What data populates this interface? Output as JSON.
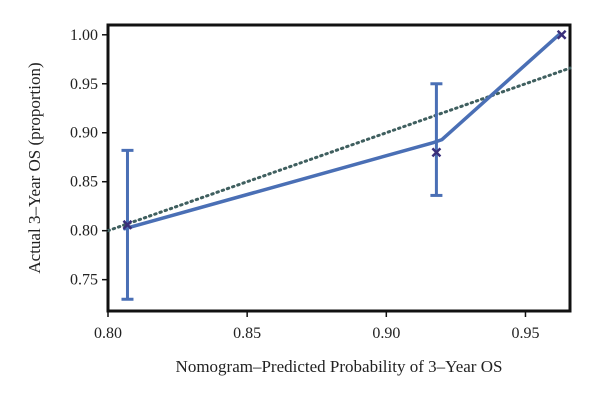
{
  "chart_data": {
    "type": "line",
    "title": "",
    "xlabel": "Nomogram–Predicted Probability of 3–Year OS",
    "ylabel": "Actual 3–Year OS (proportion)",
    "xlim": [
      0.8,
      0.966
    ],
    "ylim": [
      0.718,
      1.01
    ],
    "x_ticks": [
      {
        "value": 0.8,
        "label": "0.80"
      },
      {
        "value": 0.85,
        "label": "0.85"
      },
      {
        "value": 0.9,
        "label": "0.90"
      },
      {
        "value": 0.95,
        "label": "0.95"
      }
    ],
    "y_ticks": [
      {
        "value": 0.75,
        "label": "0.75"
      },
      {
        "value": 0.8,
        "label": "0.80"
      },
      {
        "value": 0.85,
        "label": "0.85"
      },
      {
        "value": 0.9,
        "label": "0.90"
      },
      {
        "value": 0.95,
        "label": "0.95"
      },
      {
        "value": 1.0,
        "label": "1.00"
      }
    ],
    "grid": false,
    "reference_line": {
      "x": [
        0.8,
        0.966
      ],
      "y": [
        0.8,
        0.966
      ],
      "style": "dotted",
      "color": "#3f5f5f"
    },
    "series": [
      {
        "color": "#4a6fb5",
        "line": [
          {
            "x": 0.806,
            "y": 0.802
          },
          {
            "x": 0.917,
            "y": 0.89
          },
          {
            "x": 0.92,
            "y": 0.893
          },
          {
            "x": 0.962,
            "y": 1.0
          }
        ],
        "points": [
          {
            "x": 0.807,
            "y": 0.806,
            "lower": 0.73,
            "upper": 0.882
          },
          {
            "x": 0.918,
            "y": 0.88,
            "lower": 0.836,
            "upper": 0.95
          },
          {
            "x": 0.963,
            "y": 1.0
          }
        ]
      }
    ],
    "marker_color": "#3a2f7a"
  }
}
